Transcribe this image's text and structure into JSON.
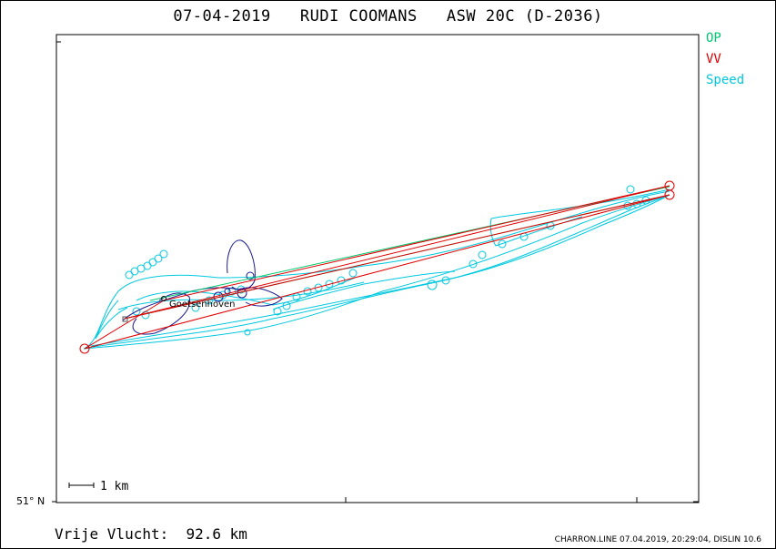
{
  "title": "07-04-2019   RUDI COOMANS   ASW 20C (D-2036)",
  "legend": {
    "op": "OP",
    "vv": "VV",
    "speed": "Speed"
  },
  "colors": {
    "op": "#00c870",
    "vv": "#e00000",
    "speed": "#00c8e0",
    "climb": "#1a1a90"
  },
  "map": {
    "latitude_label": "51° N",
    "scale_label": "1 km",
    "place_label": "Goetsenhoven"
  },
  "bottom": {
    "label": "Vrije Vlucht:",
    "distance": "92.6 km"
  },
  "footer": "CHARRON.LINE 07.04.2019, 20:29:04, DISLIN 10.6"
}
